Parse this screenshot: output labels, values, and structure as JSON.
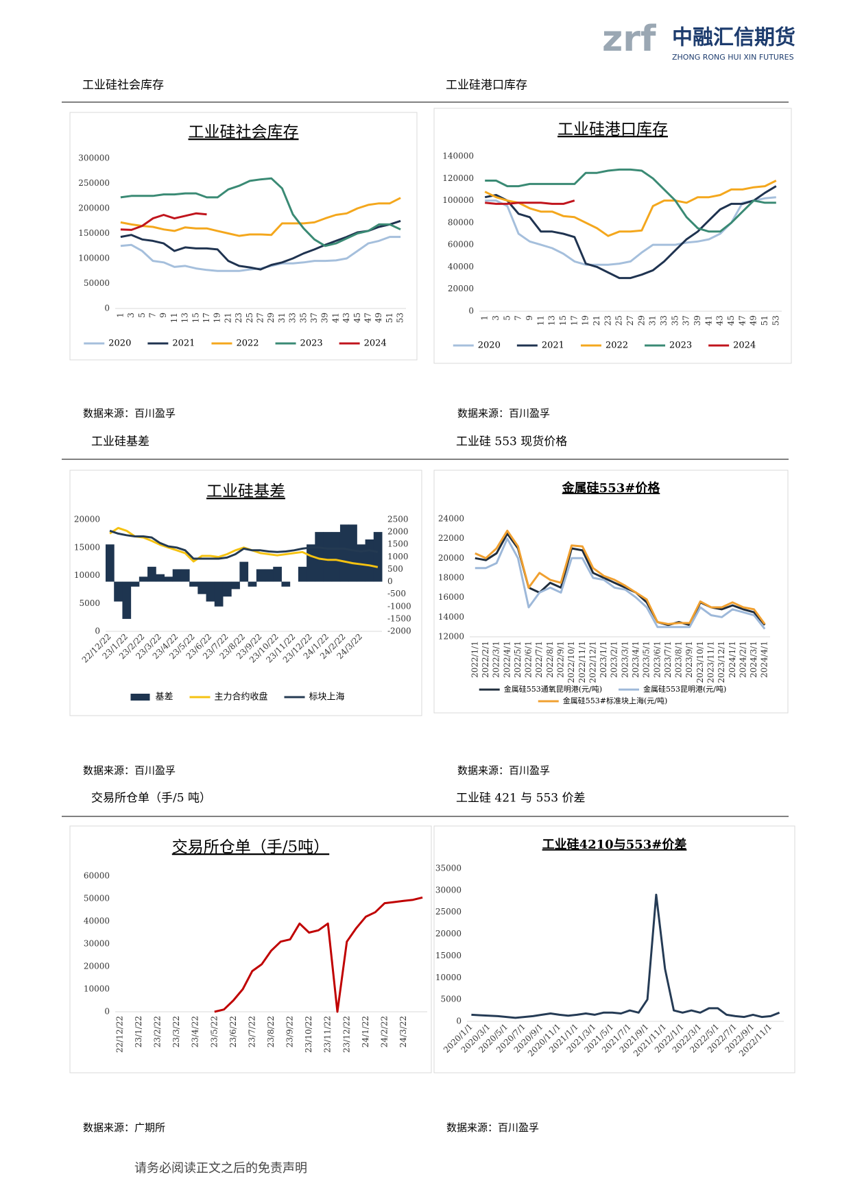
{
  "header": {
    "logo_mark": "zrf",
    "company": "中融汇信期货",
    "company_en": "ZHONG RONG HUI XIN FUTURES"
  },
  "sections": [
    {
      "title": "工业硅社会库存",
      "source": "数据来源：百川盈孚"
    },
    {
      "title": "工业硅港口库存",
      "source": "数据来源：百川盈孚"
    },
    {
      "title": "工业硅基差",
      "source": "数据来源：百川盈孚"
    },
    {
      "title": "工业硅 553 现货价格",
      "source": "数据来源：百川盈孚"
    },
    {
      "title": "交易所仓单（手/5 吨）",
      "source": "数据来源：广期所"
    },
    {
      "title": "工业硅 421 与 553 价差",
      "source": "数据来源：百川盈孚"
    }
  ],
  "footer": "请务必阅读正文之后的免责声明",
  "chart_data": [
    {
      "type": "line",
      "title": "工业硅社会库存",
      "categories": [
        1,
        3,
        5,
        7,
        9,
        11,
        13,
        15,
        17,
        19,
        21,
        23,
        25,
        27,
        29,
        31,
        33,
        35,
        37,
        39,
        41,
        43,
        45,
        47,
        49,
        51,
        53
      ],
      "ylim": [
        0,
        300000
      ],
      "yticks": [
        0,
        50000,
        100000,
        150000,
        200000,
        250000,
        300000
      ],
      "series": [
        {
          "name": "2020",
          "color": "#a5bfdc",
          "values": [
            125000,
            127000,
            115000,
            95000,
            92000,
            83000,
            85000,
            80000,
            77000,
            75000,
            75000,
            75000,
            78000,
            80000,
            85000,
            90000,
            90000,
            92000,
            95000,
            95000,
            96000,
            100000,
            115000,
            130000,
            135000,
            143000,
            143000
          ]
        },
        {
          "name": "2021",
          "color": "#1f3350",
          "values": [
            143000,
            147000,
            138000,
            135000,
            130000,
            115000,
            122000,
            120000,
            120000,
            118000,
            95000,
            85000,
            82000,
            78000,
            87000,
            92000,
            100000,
            110000,
            118000,
            127000,
            135000,
            143000,
            152000,
            155000,
            163000,
            168000,
            175000
          ]
        },
        {
          "name": "2022",
          "color": "#f4a71d",
          "values": [
            172000,
            168000,
            165000,
            163000,
            158000,
            155000,
            162000,
            160000,
            160000,
            155000,
            150000,
            145000,
            148000,
            148000,
            147000,
            170000,
            170000,
            170000,
            172000,
            180000,
            187000,
            190000,
            200000,
            207000,
            210000,
            210000,
            221000
          ]
        },
        {
          "name": "2023",
          "color": "#3a8a74",
          "values": [
            222000,
            225000,
            225000,
            225000,
            228000,
            228000,
            230000,
            230000,
            222000,
            222000,
            238000,
            245000,
            255000,
            258000,
            260000,
            240000,
            188000,
            160000,
            138000,
            125000,
            130000,
            140000,
            150000,
            155000,
            168000,
            168000,
            158000
          ]
        },
        {
          "name": "2024",
          "color": "#c0141c",
          "values": [
            158000,
            157000,
            165000,
            180000,
            187000,
            180000,
            185000,
            190000,
            188000,
            null,
            null,
            null,
            null,
            null,
            null,
            null,
            null,
            null,
            null,
            null,
            null,
            null,
            null,
            null,
            null,
            null,
            null
          ]
        }
      ]
    },
    {
      "type": "line",
      "title": "工业硅港口库存",
      "categories": [
        1,
        3,
        5,
        7,
        9,
        11,
        13,
        15,
        17,
        19,
        21,
        23,
        25,
        27,
        29,
        31,
        33,
        35,
        37,
        39,
        41,
        43,
        45,
        47,
        49,
        51,
        53
      ],
      "ylim": [
        0,
        140000
      ],
      "yticks": [
        0,
        20000,
        40000,
        60000,
        80000,
        100000,
        120000,
        140000
      ],
      "series": [
        {
          "name": "2020",
          "color": "#a5bfdc",
          "values": [
            100000,
            100000,
            95000,
            70000,
            63000,
            60000,
            57000,
            52000,
            45000,
            42000,
            42000,
            42000,
            43000,
            45000,
            53000,
            60000,
            60000,
            60000,
            62000,
            63000,
            65000,
            70000,
            80000,
            98000,
            100000,
            102000,
            103000
          ]
        },
        {
          "name": "2021",
          "color": "#1f3350",
          "values": [
            103000,
            105000,
            100000,
            88000,
            85000,
            72000,
            72000,
            70000,
            67000,
            43000,
            40000,
            35000,
            30000,
            30000,
            33000,
            37000,
            45000,
            55000,
            65000,
            72000,
            82000,
            92000,
            97000,
            97000,
            100000,
            107000,
            113000
          ]
        },
        {
          "name": "2022",
          "color": "#f4a71d",
          "values": [
            108000,
            103000,
            100000,
            98000,
            93000,
            90000,
            90000,
            86000,
            85000,
            80000,
            75000,
            68000,
            72000,
            72000,
            73000,
            95000,
            100000,
            100000,
            98000,
            103000,
            103000,
            105000,
            110000,
            110000,
            112000,
            113000,
            118000
          ]
        },
        {
          "name": "2023",
          "color": "#3a8a74",
          "values": [
            118000,
            118000,
            113000,
            113000,
            115000,
            115000,
            115000,
            115000,
            115000,
            125000,
            125000,
            127000,
            128000,
            128000,
            127000,
            120000,
            110000,
            100000,
            85000,
            75000,
            72000,
            72000,
            80000,
            90000,
            100000,
            98000,
            98000
          ]
        },
        {
          "name": "2024",
          "color": "#c0141c",
          "values": [
            98000,
            97000,
            97000,
            98000,
            98000,
            98000,
            97000,
            97000,
            100000,
            null,
            null,
            null,
            null,
            null,
            null,
            null,
            null,
            null,
            null,
            null,
            null,
            null,
            null,
            null,
            null,
            null,
            null
          ]
        }
      ]
    },
    {
      "type": "combo",
      "title": "工业硅基差",
      "categories": [
        "22/12/22",
        null,
        "23/1/22",
        null,
        "23/2/22",
        null,
        "23/3/22",
        null,
        "23/4/22",
        null,
        "23/5/22",
        null,
        "23/6/22",
        null,
        "23/7/22",
        null,
        "23/8/22",
        null,
        "23/9/22",
        null,
        "23/10/22",
        null,
        "23/11/22",
        null,
        "23/12/22",
        null,
        "24/1/22",
        null,
        "24/2/22",
        null,
        "24/3/22",
        null,
        null
      ],
      "ylim": [
        0,
        20000
      ],
      "yticks": [
        0,
        5000,
        10000,
        15000,
        20000
      ],
      "y2lim": [
        -2000,
        2500
      ],
      "y2ticks": [
        -2000,
        -1500,
        -1000,
        -500,
        0,
        500,
        1000,
        1500,
        2000,
        2500
      ],
      "series": [
        {
          "name": "基差",
          "color": "#1e3550",
          "type": "area",
          "axis": "y2",
          "values": [
            1500,
            -800,
            -1500,
            -200,
            200,
            600,
            300,
            200,
            500,
            500,
            -200,
            -500,
            -800,
            -1000,
            -600,
            -300,
            800,
            -200,
            500,
            500,
            600,
            -200,
            0,
            600,
            1500,
            2000,
            2000,
            2000,
            2300,
            2300,
            1500,
            1700,
            2000
          ]
        },
        {
          "name": "主力合约收盘",
          "color": "#f5c211",
          "values": [
            17500,
            18500,
            18000,
            17000,
            16800,
            16200,
            15500,
            15000,
            14500,
            14000,
            12500,
            13500,
            13500,
            13300,
            13800,
            14500,
            15000,
            14500,
            14000,
            13800,
            13600,
            13800,
            14000,
            14200,
            13500,
            13000,
            12800,
            12800,
            12500,
            12200,
            12000,
            11800,
            11500
          ]
        },
        {
          "name": "标块上海",
          "color": "#243a52",
          "values": [
            18000,
            17500,
            17200,
            17000,
            17000,
            16800,
            15800,
            15200,
            15000,
            14500,
            13000,
            13000,
            13000,
            13000,
            13200,
            13800,
            14800,
            14500,
            14500,
            14300,
            14200,
            14300,
            14500,
            14800,
            15000,
            15000,
            14800,
            14800,
            14800,
            14500,
            14300,
            14500,
            14200
          ]
        }
      ]
    },
    {
      "type": "line",
      "title": "金属硅553#价格",
      "categories": [
        "2022/1/1",
        "2022/2/1",
        "2022/3/1",
        "2022/4/1",
        "2022/5/1",
        "2022/6/1",
        "2022/7/1",
        "2022/8/1",
        "2022/9/1",
        "2022/10/1",
        "2022/11/1",
        "2022/12/1",
        "2023/1/1",
        "2023/2/1",
        "2023/3/1",
        "2023/4/1",
        "2023/5/1",
        "2023/6/1",
        "2023/7/1",
        "2023/8/1",
        "2023/9/1",
        "2023/10/1",
        "2023/11/1",
        "2023/12/1",
        "2024/1/1",
        "2024/2/1",
        "2024/3/1",
        "2024/4/1"
      ],
      "ylim": [
        12000,
        24000
      ],
      "yticks": [
        12000,
        14000,
        16000,
        18000,
        20000,
        22000,
        24000
      ],
      "series": [
        {
          "name": "金属硅553通氧昆明港(元/吨)",
          "color": "#1f2d3d",
          "values": [
            20000,
            19800,
            20500,
            22500,
            21000,
            17000,
            16500,
            17500,
            17000,
            21000,
            20800,
            18500,
            18000,
            17500,
            17000,
            16500,
            15500,
            13500,
            13200,
            13500,
            13200,
            15500,
            15000,
            14800,
            15200,
            14800,
            14500,
            13200
          ]
        },
        {
          "name": "金属硅553昆明港(元/吨)",
          "color": "#9db8d9",
          "values": [
            19000,
            19000,
            19500,
            22000,
            20000,
            15000,
            16500,
            17000,
            16500,
            20000,
            20000,
            18000,
            17800,
            17000,
            16800,
            16000,
            15000,
            13000,
            13000,
            13000,
            13000,
            15000,
            14200,
            14000,
            14800,
            14500,
            14200,
            12800
          ]
        },
        {
          "name": "金属硅553#标准块上海(元/吨)",
          "color": "#f0a030",
          "values": [
            20500,
            20000,
            21000,
            22800,
            21200,
            17000,
            18500,
            17800,
            17500,
            21300,
            21200,
            19000,
            18200,
            17800,
            17200,
            16500,
            15800,
            13500,
            13300,
            13400,
            13400,
            15600,
            15000,
            15000,
            15500,
            15000,
            14800,
            13300
          ]
        }
      ]
    },
    {
      "type": "line",
      "title": "交易所仓单（手/5吨）",
      "categories": [
        "22/12/22",
        null,
        "23/1/22",
        null,
        "23/2/22",
        null,
        "23/3/22",
        null,
        "23/4/22",
        null,
        "23/5/22",
        null,
        "23/6/22",
        null,
        "23/7/22",
        null,
        "23/8/22",
        null,
        "23/9/22",
        null,
        "23/10/22",
        null,
        "23/11/22",
        null,
        "23/12/22",
        null,
        "24/1/22",
        null,
        "24/2/22",
        null,
        "24/3/22",
        null,
        null
      ],
      "ylim": [
        0,
        60000
      ],
      "yticks": [
        0,
        10000,
        20000,
        30000,
        40000,
        50000,
        60000
      ],
      "series": [
        {
          "color": "#c00000",
          "values": [
            null,
            null,
            null,
            null,
            null,
            null,
            null,
            null,
            null,
            null,
            0,
            1000,
            5000,
            10000,
            18000,
            21000,
            27000,
            31000,
            32000,
            39000,
            35000,
            36000,
            39000,
            0,
            31000,
            37000,
            42000,
            44000,
            48000,
            48500,
            49000,
            49500,
            50500
          ]
        }
      ]
    },
    {
      "type": "line",
      "title": "工业硅4210与553#价差",
      "categories": [
        "2020/1/1",
        null,
        "2020/3/1",
        null,
        "2020/5/1",
        null,
        "2020/7/1",
        null,
        "2020/9/1",
        null,
        "2020/11/1",
        null,
        "2021/1/1",
        null,
        "2021/3/1",
        null,
        "2021/5/1",
        null,
        "2021/7/1",
        null,
        "2021/9/1",
        null,
        "2021/11/1",
        null,
        "2022/1/1",
        null,
        "2022/3/1",
        null,
        "2022/5/1",
        null,
        "2022/7/1",
        null,
        "2022/9/1",
        null,
        "2022/11/1",
        null
      ],
      "ylim": [
        0,
        35000
      ],
      "yticks": [
        0,
        5000,
        10000,
        15000,
        20000,
        25000,
        30000,
        35000
      ],
      "series": [
        {
          "color": "#253b55",
          "values": [
            1500,
            1400,
            1300,
            1200,
            1000,
            800,
            1000,
            1200,
            1500,
            1800,
            1500,
            1300,
            1500,
            1800,
            1500,
            2000,
            2000,
            1800,
            2500,
            2000,
            5000,
            29000,
            12000,
            2500,
            2000,
            2500,
            2000,
            3000,
            3000,
            1500,
            1200,
            1000,
            1500,
            1000,
            1200,
            2000
          ]
        }
      ]
    }
  ]
}
